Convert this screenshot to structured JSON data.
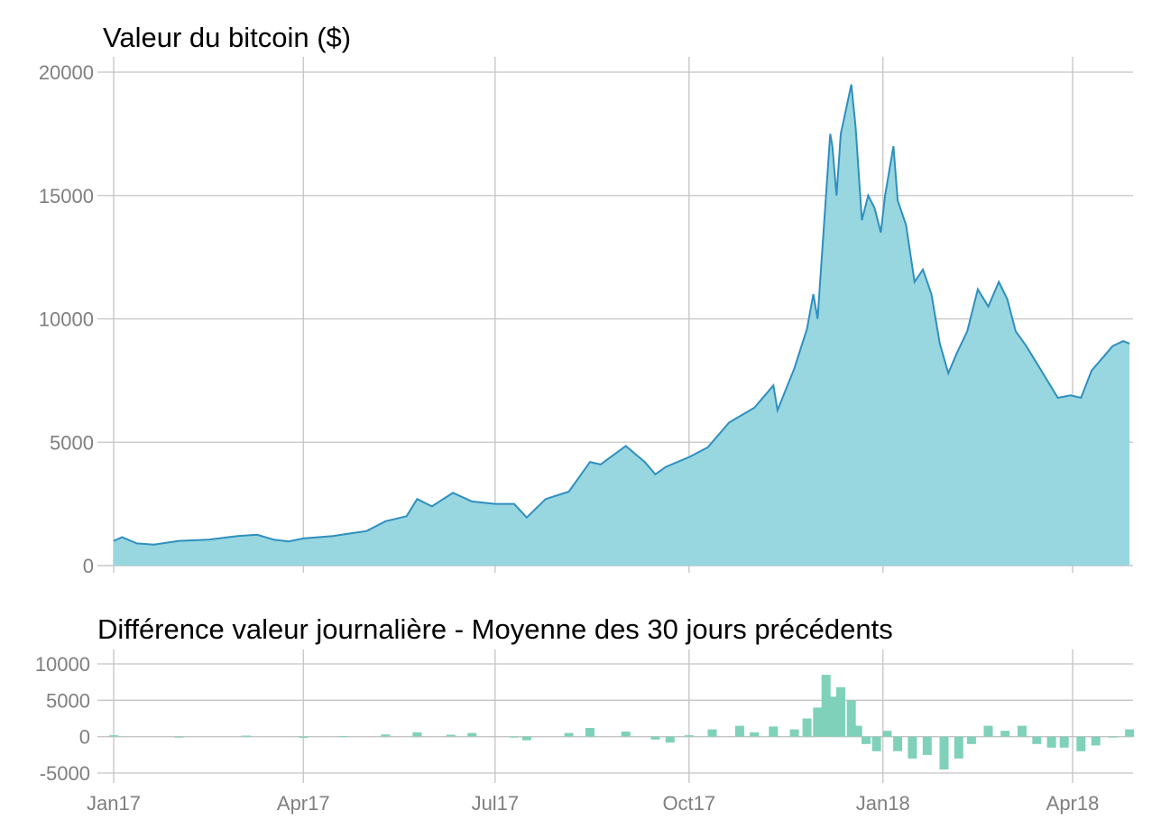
{
  "chart_data": [
    {
      "type": "area",
      "title": "Valeur du bitcoin ($)",
      "xlabel": "",
      "ylabel": "",
      "ylim": [
        0,
        20500
      ],
      "yticks": [
        0,
        5000,
        10000,
        15000,
        20000
      ],
      "x_tick_positions": [
        "2017-01-01",
        "2017-04-01",
        "2017-07-01",
        "2017-10-01",
        "2018-01-01",
        "2018-04-01"
      ],
      "grid": true,
      "legend": "none",
      "fill_color": "#96D5DF",
      "line_color": "#2E8FBF",
      "series": [
        {
          "x": [
            "2017-01-01",
            "2017-01-05",
            "2017-01-12",
            "2017-01-20",
            "2017-02-01",
            "2017-02-15",
            "2017-03-01",
            "2017-03-10",
            "2017-03-18",
            "2017-03-25",
            "2017-04-01",
            "2017-04-15",
            "2017-05-01",
            "2017-05-10",
            "2017-05-20",
            "2017-05-25",
            "2017-06-01",
            "2017-06-11",
            "2017-06-20",
            "2017-07-01",
            "2017-07-10",
            "2017-07-16",
            "2017-07-25",
            "2017-08-05",
            "2017-08-15",
            "2017-08-20",
            "2017-09-01",
            "2017-09-10",
            "2017-09-15",
            "2017-09-20",
            "2017-10-01",
            "2017-10-10",
            "2017-10-20",
            "2017-11-01",
            "2017-11-10",
            "2017-11-12",
            "2017-11-20",
            "2017-11-26",
            "2017-11-29",
            "2017-12-01",
            "2017-12-07",
            "2017-12-08",
            "2017-12-10",
            "2017-12-12",
            "2017-12-17",
            "2017-12-19",
            "2017-12-22",
            "2017-12-25",
            "2017-12-28",
            "2017-12-31",
            "2018-01-02",
            "2018-01-06",
            "2018-01-08",
            "2018-01-12",
            "2018-01-16",
            "2018-01-20",
            "2018-01-24",
            "2018-01-28",
            "2018-02-01",
            "2018-02-05",
            "2018-02-10",
            "2018-02-15",
            "2018-02-20",
            "2018-02-25",
            "2018-03-01",
            "2018-03-05",
            "2018-03-10",
            "2018-03-15",
            "2018-03-20",
            "2018-03-25",
            "2018-03-31",
            "2018-04-05",
            "2018-04-10",
            "2018-04-15",
            "2018-04-20",
            "2018-04-25",
            "2018-04-28"
          ],
          "values": [
            1000,
            1150,
            900,
            850,
            1000,
            1050,
            1200,
            1250,
            1050,
            980,
            1100,
            1200,
            1400,
            1800,
            2000,
            2700,
            2400,
            2950,
            2600,
            2500,
            2500,
            1950,
            2700,
            3000,
            4200,
            4100,
            4850,
            4200,
            3700,
            4000,
            4400,
            4800,
            5800,
            6400,
            7300,
            6300,
            8000,
            9600,
            11000,
            10000,
            17500,
            17000,
            15000,
            17500,
            19500,
            17800,
            14000,
            15000,
            14500,
            13500,
            15000,
            17000,
            14800,
            13800,
            11500,
            12000,
            11000,
            9000,
            7800,
            8600,
            9500,
            11200,
            10500,
            11500,
            10800,
            9500,
            8900,
            8200,
            7500,
            6800,
            6900,
            6800,
            7900,
            8400,
            8900,
            9100,
            9000
          ]
        }
      ]
    },
    {
      "type": "bar",
      "title": "Différence valeur journalière - Moyenne des 30 jours précédents",
      "xlabel": "",
      "ylabel": "",
      "ylim": [
        -5500,
        10500
      ],
      "yticks": [
        -5000,
        0,
        5000,
        10000
      ],
      "x_tick_labels": [
        "Jan17",
        "Apr17",
        "Jul17",
        "Oct17",
        "Jan18",
        "Apr18"
      ],
      "grid": true,
      "legend": "none",
      "bar_color": "#7FD1B9",
      "series": [
        {
          "x": [
            "2017-01-01",
            "2017-02-01",
            "2017-03-05",
            "2017-04-01",
            "2017-04-20",
            "2017-05-10",
            "2017-05-25",
            "2017-06-10",
            "2017-06-20",
            "2017-07-10",
            "2017-07-16",
            "2017-08-05",
            "2017-08-15",
            "2017-09-01",
            "2017-09-15",
            "2017-09-22",
            "2017-10-01",
            "2017-10-12",
            "2017-10-25",
            "2017-11-01",
            "2017-11-10",
            "2017-11-20",
            "2017-11-26",
            "2017-12-01",
            "2017-12-05",
            "2017-12-08",
            "2017-12-12",
            "2017-12-17",
            "2017-12-20",
            "2017-12-24",
            "2017-12-29",
            "2018-01-03",
            "2018-01-08",
            "2018-01-15",
            "2018-01-22",
            "2018-01-30",
            "2018-02-06",
            "2018-02-12",
            "2018-02-20",
            "2018-02-28",
            "2018-03-08",
            "2018-03-15",
            "2018-03-22",
            "2018-03-28",
            "2018-04-05",
            "2018-04-12",
            "2018-04-20",
            "2018-04-28"
          ],
          "values": [
            200,
            -100,
            150,
            -150,
            100,
            300,
            600,
            250,
            500,
            -100,
            -500,
            500,
            1200,
            700,
            -400,
            -800,
            200,
            1000,
            1500,
            600,
            1400,
            1000,
            2500,
            4000,
            8500,
            5500,
            6800,
            5000,
            1500,
            -1000,
            -2000,
            800,
            -2000,
            -3000,
            -2500,
            -4500,
            -3000,
            -1000,
            1500,
            800,
            1500,
            -1000,
            -1500,
            -1500,
            -2000,
            -1200,
            0,
            1000
          ]
        }
      ]
    }
  ]
}
